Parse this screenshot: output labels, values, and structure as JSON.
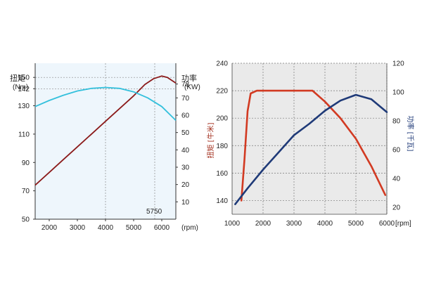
{
  "chart_data": [
    {
      "type": "line",
      "left_axis": {
        "title": "扭矩",
        "unit": "(Nm)",
        "ticks": [
          50,
          70,
          90,
          110,
          130,
          142,
          150
        ],
        "range": [
          50,
          160
        ]
      },
      "right_axis": {
        "title": "功率",
        "unit": "(KW)",
        "ticks": [
          10,
          20,
          30,
          40,
          50,
          60,
          70,
          78
        ],
        "range": [
          0,
          90
        ]
      },
      "x_axis": {
        "ticks": [
          2000,
          3000,
          4000,
          5000,
          6000
        ],
        "unit": "(rpm)",
        "range": [
          1500,
          6500
        ]
      },
      "annotation_text": "5750",
      "reference_lines": [
        {
          "axis": "x",
          "value": 4000
        },
        {
          "axis": "x",
          "value": 5750
        },
        {
          "axis": "y",
          "value": 142
        },
        {
          "axis": "y",
          "value": 150
        }
      ],
      "series": [
        {
          "color": "#8b1a1a",
          "axis": "left",
          "x": [
            1500,
            2000,
            2500,
            3000,
            3500,
            4000,
            4500,
            5000,
            5400,
            5700,
            6000,
            6200,
            6500
          ],
          "y": [
            74,
            83,
            92,
            101,
            110,
            119,
            128,
            137,
            145,
            149,
            151,
            150,
            146
          ]
        },
        {
          "color": "#33c0dc",
          "axis": "right",
          "x": [
            1500,
            2000,
            2500,
            3000,
            3500,
            4000,
            4500,
            5000,
            5500,
            6000,
            6500
          ],
          "y": [
            65,
            68.5,
            71.5,
            74,
            75.5,
            76,
            75.5,
            73.5,
            70,
            65,
            57
          ]
        }
      ]
    },
    {
      "type": "line",
      "left_axis": {
        "title": "扭矩",
        "unit": "[牛米]",
        "ticks": [
          140,
          160,
          180,
          200,
          220,
          240
        ],
        "range": [
          130,
          240
        ]
      },
      "right_axis": {
        "title": "功率",
        "unit": "[千瓦]",
        "ticks": [
          20,
          40,
          60,
          80,
          100,
          120
        ],
        "range": [
          15,
          120
        ]
      },
      "x_axis": {
        "ticks": [
          1000,
          2000,
          3000,
          4000,
          5000
        ],
        "end_label": "6000",
        "unit": "[rpm]",
        "range": [
          1000,
          6000
        ]
      },
      "series": [
        {
          "color": "#d23a22",
          "axis": "left",
          "x": [
            1300,
            1400,
            1500,
            1600,
            1800,
            2000,
            2500,
            3000,
            3600,
            4000,
            4500,
            5000,
            5500,
            5950
          ],
          "y": [
            140,
            170,
            205,
            218,
            220,
            220,
            220,
            220,
            220,
            212,
            200,
            185,
            165,
            144
          ]
        },
        {
          "color": "#1f3a78",
          "axis": "right",
          "x": [
            1100,
            1500,
            2000,
            2500,
            3000,
            3500,
            4000,
            4500,
            5000,
            5500,
            6000
          ],
          "y": [
            22,
            33,
            46,
            58,
            70,
            78,
            87,
            94,
            98,
            95,
            86
          ]
        }
      ]
    }
  ]
}
